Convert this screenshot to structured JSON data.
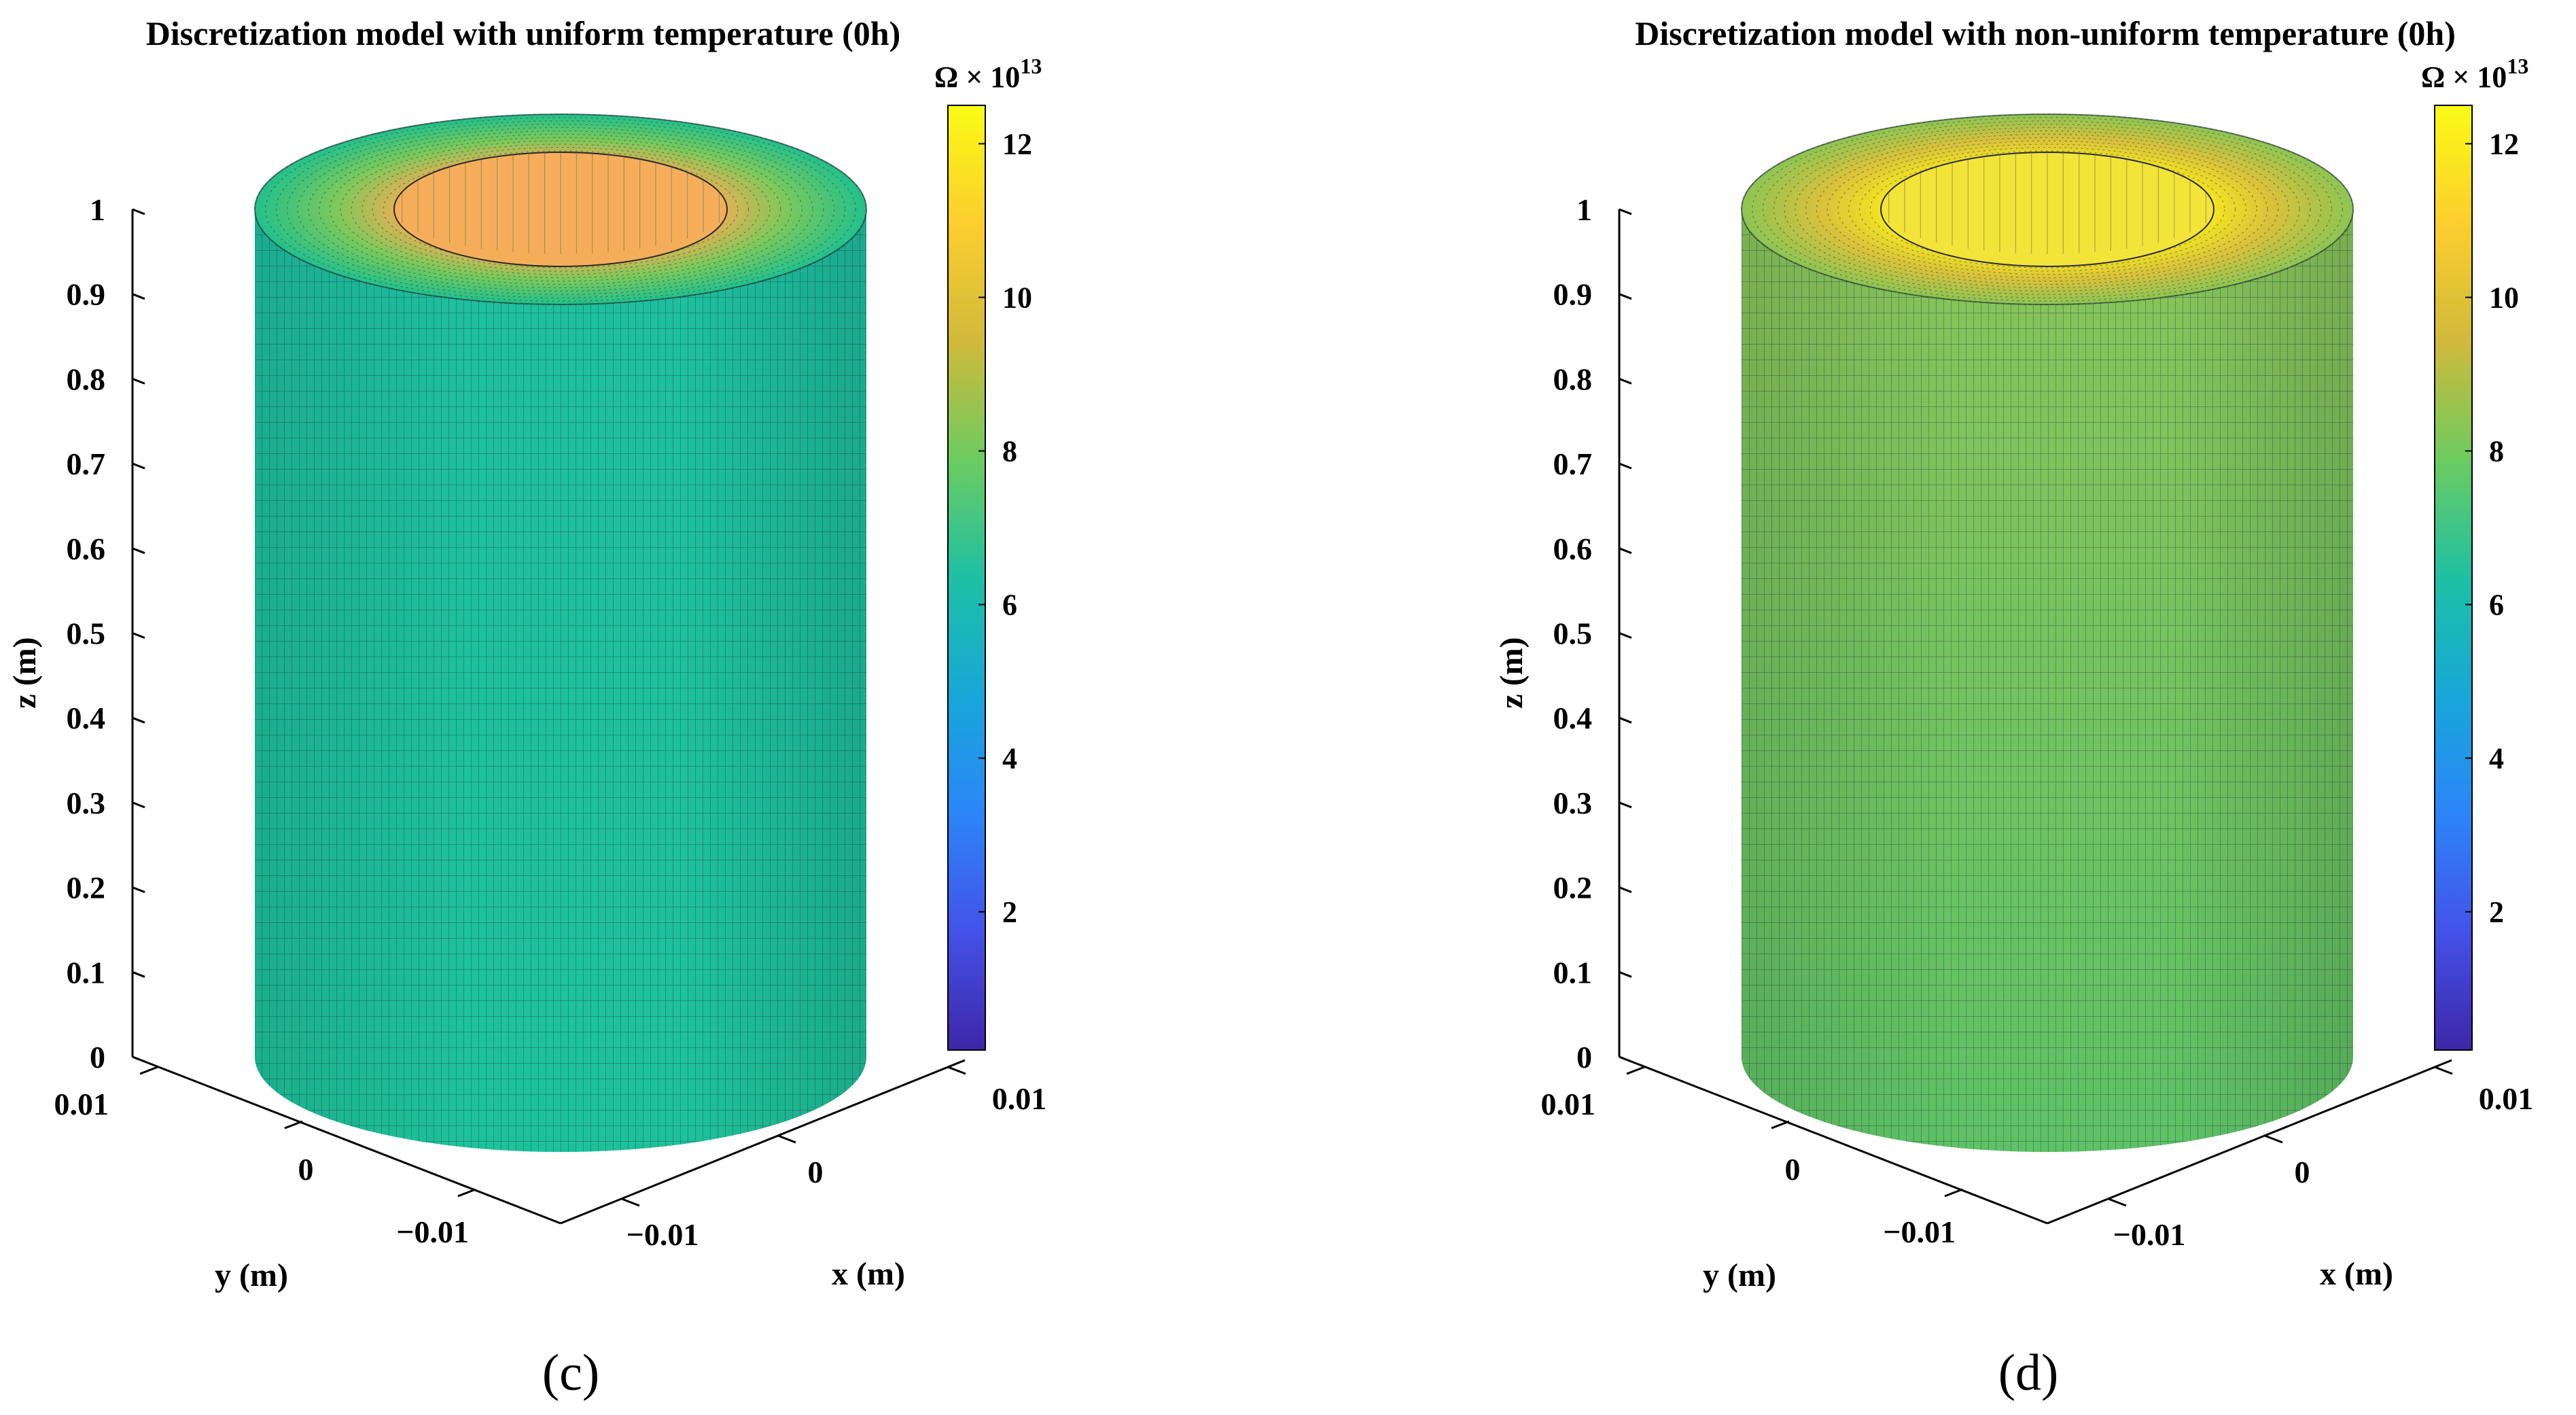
{
  "chart_data": [
    {
      "type": "3d-surface",
      "panel": "c",
      "title": "Discretization model with uniform temperature (0h)",
      "xlabel": "x (m)",
      "ylabel": "y (m)",
      "zlabel": "z (m)",
      "x_ticks": [
        "−0.01",
        "0",
        "0.01"
      ],
      "y_ticks": [
        "−0.01",
        "0",
        "0.01"
      ],
      "z_ticks": [
        "0",
        "0.1",
        "0.2",
        "0.3",
        "0.4",
        "0.5",
        "0.6",
        "0.7",
        "0.8",
        "0.9",
        "1"
      ],
      "z_range": [
        0,
        1
      ],
      "colorbar": {
        "label_base": "Ω × 10",
        "label_exp": "13",
        "range": [
          0.2,
          12.5
        ],
        "ticks": [
          "2",
          "4",
          "6",
          "8",
          "10",
          "12"
        ],
        "tick_values": [
          2,
          4,
          6,
          8,
          10,
          12
        ],
        "colors": [
          "#3e26a8",
          "#4352e8",
          "#2c85f9",
          "#17a7d8",
          "#1ec0a4",
          "#6ccc5f",
          "#d0ba3b",
          "#fcce2e",
          "#f9fb15"
        ]
      },
      "surface": {
        "outer_value": 6.9,
        "inner_value": 11.0,
        "side_color_top": "#1ebfa0",
        "side_color_bottom": "#1ec29a",
        "top_outer_color": "#22c08c",
        "top_mid_color": "#7bc95c",
        "top_inner_color": "#f2ad52",
        "bore_color": "#f4ae5a"
      }
    },
    {
      "type": "3d-surface",
      "panel": "d",
      "title": "Discretization model with non-uniform temperature (0h)",
      "xlabel": "x (m)",
      "ylabel": "y (m)",
      "zlabel": "z (m)",
      "x_ticks": [
        "−0.01",
        "0",
        "0.01"
      ],
      "y_ticks": [
        "−0.01",
        "0",
        "0.01"
      ],
      "z_ticks": [
        "0",
        "0.1",
        "0.2",
        "0.3",
        "0.4",
        "0.5",
        "0.6",
        "0.7",
        "0.8",
        "0.9",
        "1"
      ],
      "z_range": [
        0,
        1
      ],
      "colorbar": {
        "label_base": "Ω × 10",
        "label_exp": "13",
        "range": [
          0.2,
          12.5
        ],
        "ticks": [
          "2",
          "4",
          "6",
          "8",
          "10",
          "12"
        ],
        "tick_values": [
          2,
          4,
          6,
          8,
          10,
          12
        ],
        "colors": [
          "#3e26a8",
          "#4352e8",
          "#2c85f9",
          "#17a7d8",
          "#1ec0a4",
          "#6ccc5f",
          "#d0ba3b",
          "#fcce2e",
          "#f9fb15"
        ]
      },
      "surface": {
        "outer_value": 8.2,
        "inner_value": 12.3,
        "side_color_top": "#8ac45a",
        "side_color_bottom": "#5ec266",
        "top_outer_color": "#8cc454",
        "top_mid_color": "#d9c13c",
        "top_inner_color": "#f7ec1c",
        "bore_color": "#f3e43a"
      }
    }
  ],
  "panel_labels": [
    "(c)",
    "(d)"
  ]
}
